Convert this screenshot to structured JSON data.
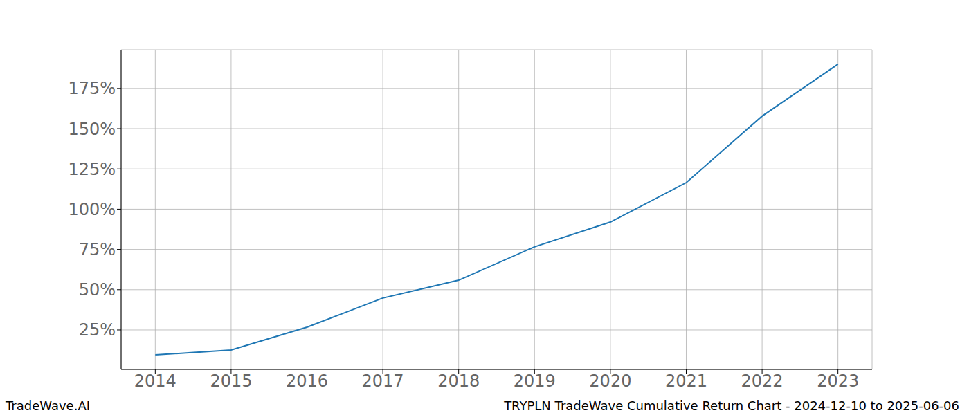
{
  "chart_data": {
    "type": "line",
    "title": "TRYPLN TradeWave Cumulative Return Chart - 2024-12-10 to 2025-06-06",
    "watermark": "TradeWave.AI",
    "x": [
      2014,
      2015,
      2016,
      2017,
      2018,
      2019,
      2020,
      2021,
      2022,
      2023
    ],
    "values": [
      9.5,
      12.5,
      26.7,
      44.8,
      55.9,
      76.6,
      92,
      116.5,
      157.8,
      190
    ],
    "color": "#1f77b4",
    "xlim": [
      2013.55,
      2023.45
    ],
    "xticks": [
      2014,
      2015,
      2016,
      2017,
      2018,
      2019,
      2020,
      2021,
      2022,
      2023
    ],
    "ylim": [
      0.5,
      199
    ],
    "yticks": [
      {
        "value": 25,
        "label": "25%"
      },
      {
        "value": 50,
        "label": "50%"
      },
      {
        "value": 75,
        "label": "75%"
      },
      {
        "value": 100,
        "label": "100%"
      },
      {
        "value": 125,
        "label": "125%"
      },
      {
        "value": 150,
        "label": "150%"
      },
      {
        "value": 175,
        "label": "175%"
      }
    ],
    "grid": true
  }
}
